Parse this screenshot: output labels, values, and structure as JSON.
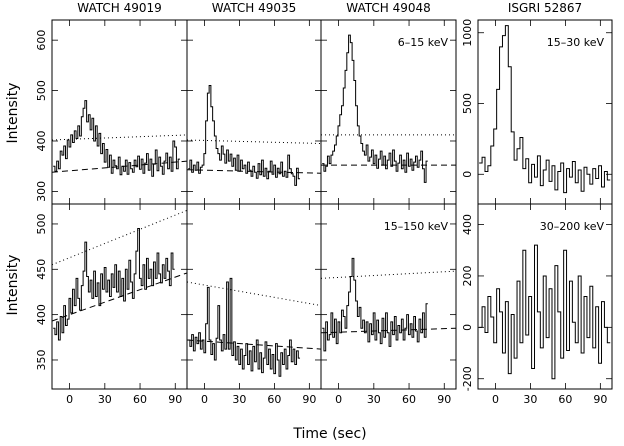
{
  "xlabel": "Time (sec)",
  "chart_data": [
    {
      "id": "w49019-low",
      "type": "line",
      "title": "WATCH 49019",
      "band": "",
      "ylabel": "Intensity",
      "xlim": [
        -15,
        100
      ],
      "ylim": [
        275,
        640
      ],
      "xticks": [
        0,
        30,
        60,
        90
      ],
      "yticks": [
        300,
        400,
        500,
        600
      ],
      "show_x_labels": false,
      "show_y_labels": true,
      "t0": -14,
      "dt": 1.5,
      "values": [
        350,
        340,
        360,
        345,
        380,
        372,
        390,
        365,
        402,
        388,
        412,
        397,
        420,
        405,
        430,
        410,
        448,
        465,
        480,
        438,
        452,
        422,
        445,
        400,
        430,
        390,
        415,
        375,
        395,
        358,
        383,
        348,
        372,
        336,
        362,
        351,
        345,
        368,
        333,
        350,
        340,
        362,
        334,
        357,
        345,
        338,
        362,
        349,
        370,
        344,
        364,
        336,
        356,
        375,
        342,
        364,
        330,
        354,
        382,
        341,
        368,
        350,
        334,
        360,
        376,
        345,
        368,
        340,
        400,
        388,
        345,
        364
      ],
      "dotted": [
        [
          -15,
          402
        ],
        [
          100,
          412
        ]
      ],
      "dashed": [
        [
          -15,
          338
        ],
        [
          100,
          360
        ]
      ]
    },
    {
      "id": "w49035-low",
      "type": "line",
      "title": "WATCH 49035",
      "band": "",
      "xlim": [
        -15,
        100
      ],
      "ylim": [
        275,
        640
      ],
      "xticks": [
        0,
        30,
        60,
        90
      ],
      "yticks": [
        300,
        400,
        500,
        600
      ],
      "show_x_labels": false,
      "show_y_labels": false,
      "t0": -14,
      "dt": 1.5,
      "values": [
        345,
        362,
        338,
        352,
        342,
        358,
        336,
        348,
        352,
        375,
        440,
        495,
        510,
        468,
        440,
        410,
        385,
        375,
        362,
        390,
        374,
        356,
        382,
        360,
        374,
        350,
        366,
        342,
        372,
        340,
        362,
        345,
        352,
        336,
        358,
        342,
        330,
        350,
        338,
        326,
        355,
        333,
        362,
        330,
        346,
        325,
        340,
        360,
        334,
        352,
        328,
        346,
        335,
        358,
        330,
        340,
        328,
        372,
        345,
        335,
        330,
        312,
        346,
        325
      ],
      "dotted": [
        [
          -15,
          402
        ],
        [
          100,
          395
        ]
      ],
      "dashed": [
        [
          -15,
          343
        ],
        [
          100,
          336
        ]
      ]
    },
    {
      "id": "w49048-low",
      "type": "line",
      "title": "WATCH 49048",
      "band": "6–15 keV",
      "xlim": [
        -15,
        100
      ],
      "ylim": [
        275,
        640
      ],
      "xticks": [
        0,
        30,
        60,
        90
      ],
      "yticks": [
        300,
        400,
        500,
        600
      ],
      "show_x_labels": false,
      "show_y_labels": false,
      "t0": -14,
      "dt": 1.5,
      "values": [
        355,
        340,
        350,
        370,
        355,
        372,
        380,
        392,
        410,
        430,
        452,
        470,
        505,
        540,
        575,
        610,
        595,
        560,
        520,
        470,
        430,
        410,
        395,
        380,
        372,
        392,
        360,
        368,
        382,
        355,
        372,
        346,
        364,
        380,
        352,
        370,
        345,
        362,
        376,
        350,
        382,
        360,
        340,
        356,
        372,
        345,
        362,
        338,
        376,
        350,
        364,
        342,
        358,
        370,
        348,
        362,
        380,
        345,
        318,
        360
      ],
      "dotted": [
        [
          -15,
          412
        ],
        [
          100,
          412
        ]
      ],
      "dashed": [
        [
          -15,
          352
        ],
        [
          100,
          352
        ]
      ]
    },
    {
      "id": "isgri-low",
      "type": "line",
      "title": "ISGRI 52867",
      "band": "15–30 keV",
      "xlim": [
        -15,
        100
      ],
      "ylim": [
        -210,
        1090
      ],
      "xticks": [
        0,
        30,
        60,
        90
      ],
      "yticks": [
        0,
        500,
        1000
      ],
      "show_x_labels": false,
      "show_y_labels": true,
      "t0": -14,
      "dt": 2.5,
      "values": [
        80,
        120,
        20,
        60,
        200,
        320,
        600,
        900,
        980,
        1050,
        760,
        300,
        100,
        180,
        260,
        40,
        110,
        -60,
        70,
        -20,
        130,
        -80,
        30,
        100,
        -50,
        60,
        -110,
        20,
        80,
        -130,
        40,
        -20,
        90,
        -60,
        30,
        -120,
        50,
        0,
        -70,
        40,
        -30,
        60,
        -90,
        20,
        -40
      ],
      "dotted": [],
      "dashed": []
    },
    {
      "id": "w49019-high",
      "type": "line",
      "title": "",
      "band": "",
      "ylabel": "Intensity",
      "xlim": [
        -15,
        100
      ],
      "ylim": [
        318,
        522
      ],
      "xticks": [
        0,
        30,
        60,
        90
      ],
      "yticks": [
        350,
        400,
        450,
        500
      ],
      "show_x_labels": true,
      "show_y_labels": true,
      "t0": -14,
      "dt": 1.5,
      "values": [
        385,
        378,
        392,
        372,
        398,
        380,
        410,
        388,
        395,
        418,
        402,
        428,
        410,
        440,
        418,
        405,
        432,
        448,
        480,
        442,
        425,
        438,
        418,
        448,
        420,
        435,
        410,
        445,
        428,
        452,
        425,
        438,
        420,
        445,
        430,
        455,
        425,
        448,
        420,
        440,
        415,
        450,
        428,
        460,
        436,
        418,
        445,
        470,
        495,
        440,
        432,
        455,
        428,
        462,
        440,
        450,
        432,
        458,
        440,
        468,
        445,
        435,
        455,
        440,
        462,
        448,
        432,
        468,
        450
      ],
      "dotted": [
        [
          -15,
          455
        ],
        [
          100,
          515
        ]
      ],
      "dashed": [
        [
          -15,
          393
        ],
        [
          100,
          446
        ]
      ]
    },
    {
      "id": "w49035-high",
      "type": "line",
      "title": "",
      "band": "",
      "xlim": [
        -15,
        100
      ],
      "ylim": [
        318,
        522
      ],
      "xticks": [
        0,
        30,
        60,
        90
      ],
      "yticks": [
        350,
        400,
        450,
        500
      ],
      "show_x_labels": true,
      "show_y_labels": false,
      "t0": -14,
      "dt": 1.5,
      "values": [
        372,
        365,
        378,
        360,
        375,
        368,
        380,
        362,
        372,
        358,
        390,
        430,
        372,
        356,
        368,
        350,
        374,
        410,
        372,
        360,
        378,
        362,
        436,
        362,
        440,
        355,
        370,
        350,
        365,
        345,
        362,
        340,
        355,
        368,
        345,
        360,
        338,
        365,
        348,
        372,
        340,
        358,
        336,
        352,
        370,
        345,
        362,
        340,
        356,
        335,
        368,
        350,
        332,
        358,
        345,
        362,
        340,
        355,
        372,
        348,
        362,
        345,
        360,
        352
      ],
      "dotted": [
        [
          -15,
          436
        ],
        [
          100,
          410
        ]
      ],
      "dashed": [
        [
          -15,
          372
        ],
        [
          100,
          362
        ]
      ]
    },
    {
      "id": "w49048-high",
      "type": "line",
      "title": "",
      "band": "15–150 keV",
      "xlim": [
        -15,
        100
      ],
      "ylim": [
        318,
        522
      ],
      "xticks": [
        0,
        30,
        60,
        90
      ],
      "yticks": [
        350,
        400,
        450,
        500
      ],
      "show_x_labels": true,
      "show_y_labels": false,
      "t0": -14,
      "dt": 1.5,
      "values": [
        385,
        360,
        392,
        372,
        378,
        402,
        375,
        395,
        368,
        392,
        380,
        405,
        398,
        385,
        410,
        425,
        442,
        462,
        438,
        415,
        398,
        408,
        385,
        394,
        380,
        392,
        370,
        390,
        378,
        402,
        372,
        394,
        380,
        368,
        396,
        375,
        402,
        380,
        365,
        392,
        378,
        398,
        372,
        388,
        380,
        395,
        372,
        385,
        400,
        378,
        390,
        375,
        398,
        382,
        370,
        395,
        380,
        402,
        375,
        412
      ],
      "dotted": [
        [
          -15,
          440
        ],
        [
          100,
          448
        ]
      ],
      "dashed": [
        [
          -15,
          380
        ],
        [
          100,
          385
        ]
      ]
    },
    {
      "id": "isgri-high",
      "type": "line",
      "title": "",
      "band": "30–200 keV",
      "xlim": [
        -15,
        100
      ],
      "ylim": [
        -240,
        480
      ],
      "xticks": [
        0,
        30,
        60,
        90
      ],
      "yticks": [
        -200,
        0,
        200,
        400
      ],
      "show_x_labels": true,
      "show_y_labels": true,
      "t0": -14,
      "dt": 2.5,
      "values": [
        0,
        80,
        -20,
        120,
        40,
        -60,
        150,
        60,
        -100,
        100,
        -180,
        50,
        -120,
        180,
        -60,
        300,
        -30,
        120,
        -160,
        320,
        60,
        -80,
        200,
        -40,
        150,
        -200,
        240,
        60,
        -120,
        300,
        -90,
        180,
        20,
        -60,
        200,
        -100,
        120,
        -40,
        160,
        -80,
        80,
        -140,
        100,
        0,
        -60
      ],
      "dotted": [],
      "dashed": []
    }
  ]
}
